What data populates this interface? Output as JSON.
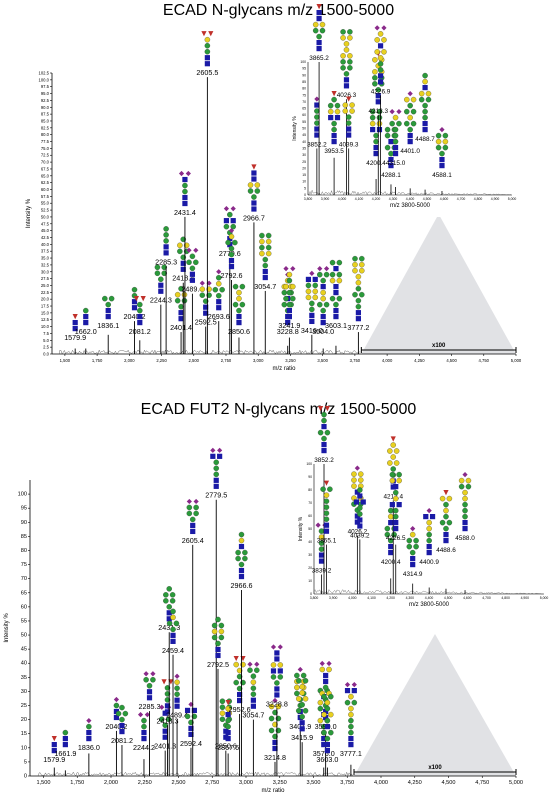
{
  "figure": {
    "top_title": "ECAD N-glycans m/z 1500-5000",
    "bottom_title": "ECAD FUT2 N-glycans m/z 1500-5000",
    "zoom_label": "x100"
  },
  "chart_data": [
    {
      "type": "line",
      "title": "ECAD N-glycans m/z 1500-5000",
      "xlabel": "m/z ratio",
      "ylabel": "Intensity %",
      "xlim": [
        1400,
        5000
      ],
      "ylim": [
        0,
        102.5
      ],
      "x_ticks": [
        1500,
        1750,
        2000,
        2250,
        2500,
        2750,
        3000,
        3250,
        3500,
        3750,
        4000,
        4250,
        4500,
        4750,
        5000
      ],
      "x_tick_labels": [
        "1,500",
        "1,750",
        "2,000",
        "2,250",
        "2,500",
        "2,750",
        "3,000",
        "3,250",
        "3,500",
        "3,750",
        "4,000",
        "4,250",
        "4,500",
        "4,750",
        "5,000"
      ],
      "y_ticks": [
        0,
        2.5,
        5,
        7.5,
        10,
        12.5,
        15,
        17.5,
        20,
        22.5,
        25,
        27.5,
        30,
        32.5,
        35,
        37.5,
        40,
        42.5,
        45,
        47.5,
        50,
        52.5,
        55,
        57.5,
        60,
        62.5,
        65,
        67.5,
        70,
        72.5,
        75,
        77.5,
        80,
        82.5,
        85,
        87.5,
        90,
        92.5,
        95,
        97.5,
        100,
        102.5
      ],
      "y_tick_labels": [
        "0.0",
        "2.5",
        "5.0",
        "7.5",
        "10.0",
        "12.5",
        "15.0",
        "17.5",
        "20.0",
        "22.5",
        "25.0",
        "27.5",
        "30.0",
        "32.5",
        "35.0",
        "37.5",
        "40.0",
        "42.5",
        "45.0",
        "47.5",
        "50.0",
        "52.5",
        "55.0",
        "57.5",
        "60.0",
        "62.5",
        "65.0",
        "67.5",
        "70.0",
        "72.5",
        "75.0",
        "77.5",
        "80.0",
        "82.5",
        "85.0",
        "87.5",
        "90.0",
        "92.5",
        "95.0",
        "97.5",
        "100.0",
        "102.5"
      ],
      "peaks": [
        {
          "x": 1579.9,
          "y": 2,
          "label": "1579.9"
        },
        {
          "x": 1662.0,
          "y": 2,
          "label": "1662.0"
        },
        {
          "x": 1836.1,
          "y": 7,
          "label": "1836.1"
        },
        {
          "x": 2040.2,
          "y": 12,
          "label": "2040.2"
        },
        {
          "x": 2081.2,
          "y": 5,
          "label": "2081.2"
        },
        {
          "x": 2244.3,
          "y": 18,
          "label": "2244.3"
        },
        {
          "x": 2285.3,
          "y": 32,
          "label": "2285.3"
        },
        {
          "x": 2401.4,
          "y": 8,
          "label": "2401.4"
        },
        {
          "x": 2418.4,
          "y": 26,
          "label": "2418.4"
        },
        {
          "x": 2431.4,
          "y": 50,
          "label": "2431.4"
        },
        {
          "x": 2489.4,
          "y": 22,
          "label": "2489.4"
        },
        {
          "x": 2592.5,
          "y": 10,
          "label": "2592.5"
        },
        {
          "x": 2605.5,
          "y": 101,
          "label": "2605.5"
        },
        {
          "x": 2693.6,
          "y": 12,
          "label": "2693.6"
        },
        {
          "x": 2779.6,
          "y": 35,
          "label": "2779.6"
        },
        {
          "x": 2792.6,
          "y": 27,
          "label": "2792.6"
        },
        {
          "x": 2850.6,
          "y": 6,
          "label": "2850.6"
        },
        {
          "x": 2966.7,
          "y": 48,
          "label": "2966.7"
        },
        {
          "x": 3054.7,
          "y": 23,
          "label": "3054.7"
        },
        {
          "x": 3228.8,
          "y": 3,
          "label": "3228.8"
        },
        {
          "x": 3241.9,
          "y": 6,
          "label": "3241.9"
        },
        {
          "x": 3416.0,
          "y": 7,
          "label": "3416.0"
        },
        {
          "x": 3504.0,
          "y": 2,
          "label": "3504.0"
        },
        {
          "x": 3603.1,
          "y": 3,
          "label": "3603.1"
        },
        {
          "x": 3777.2,
          "y": 8,
          "label": "3777.2"
        }
      ],
      "zoom_region": {
        "label": "x100",
        "xlim": [
          3800,
          5000
        ]
      },
      "inset": {
        "xlabel": "m/z 3800-5000",
        "ylabel": "Intensity %",
        "xlim": [
          3800,
          5000
        ],
        "ylim": [
          0,
          100
        ],
        "x_ticks": [
          3800,
          3900,
          4000,
          4100,
          4200,
          4300,
          4400,
          4500,
          4600,
          4700,
          4800,
          4900,
          5000
        ],
        "x_tick_labels": [
          "3,800",
          "3,900",
          "4,000",
          "4,100",
          "4,200",
          "4,300",
          "4,400",
          "4,500",
          "4,600",
          "4,700",
          "4,800",
          "4,900",
          "5,000"
        ],
        "y_ticks": [
          0,
          5,
          10,
          15,
          20,
          25,
          30,
          35,
          40,
          45,
          50,
          55,
          60,
          65,
          70,
          75,
          80,
          85,
          90,
          95,
          100
        ],
        "y_tick_labels": [
          "0",
          "5",
          "10",
          "15",
          "20",
          "25",
          "30",
          "35",
          "40",
          "45",
          "50",
          "55",
          "60",
          "65",
          "70",
          "75",
          "80",
          "85",
          "90",
          "95",
          "100"
        ],
        "peaks": [
          {
            "x": 3852.2,
            "y": 35,
            "label": "3852.2"
          },
          {
            "x": 3865.2,
            "y": 100,
            "label": "3865.2"
          },
          {
            "x": 3953.5,
            "y": 28,
            "label": "3953.5"
          },
          {
            "x": 4026.3,
            "y": 72,
            "label": "4026.3"
          },
          {
            "x": 4039.3,
            "y": 35,
            "label": "4039.3"
          },
          {
            "x": 4200.4,
            "y": 12,
            "label": "4200.4"
          },
          {
            "x": 4213.3,
            "y": 60,
            "label": "4213.3"
          },
          {
            "x": 4226.9,
            "y": 75,
            "label": "4226.9"
          },
          {
            "x": 4288.1,
            "y": 8,
            "label": "4288.1"
          },
          {
            "x": 4315.0,
            "y": 6,
            "label": "4315.0"
          },
          {
            "x": 4401.0,
            "y": 5,
            "label": "4401.0"
          },
          {
            "x": 4488.7,
            "y": 4,
            "label": "4488.7"
          },
          {
            "x": 4588.1,
            "y": 3,
            "label": "4588.1"
          }
        ]
      }
    },
    {
      "type": "line",
      "title": "ECAD FUT2 N-glycans m/z 1500-5000",
      "xlabel": "m/z ratio",
      "ylabel": "Intensity %",
      "xlim": [
        1400,
        5000
      ],
      "ylim": [
        0,
        105
      ],
      "x_ticks": [
        1500,
        1750,
        2000,
        2250,
        2500,
        2750,
        3000,
        3250,
        3500,
        3750,
        4000,
        4250,
        4500,
        4750,
        5000
      ],
      "x_tick_labels": [
        "1,500",
        "1,750",
        "2,000",
        "2,250",
        "2,500",
        "2,750",
        "3,000",
        "3,250",
        "3,500",
        "3,750",
        "4,000",
        "4,250",
        "4,500",
        "4,750",
        "5,000"
      ],
      "y_ticks": [
        0,
        5,
        10,
        15,
        20,
        25,
        30,
        35,
        40,
        45,
        50,
        55,
        60,
        65,
        70,
        75,
        80,
        85,
        90,
        95,
        100
      ],
      "y_tick_labels": [
        "0",
        "5",
        "10",
        "15",
        "20",
        "25",
        "30",
        "35",
        "40",
        "45",
        "50",
        "55",
        "60",
        "65",
        "70",
        "75",
        "80",
        "85",
        "90",
        "95",
        "100"
      ],
      "peaks": [
        {
          "x": 1579.9,
          "y": 3,
          "label": "1579.9"
        },
        {
          "x": 1661.9,
          "y": 2,
          "label": "1661.9"
        },
        {
          "x": 1836.0,
          "y": 8,
          "label": "1836.0"
        },
        {
          "x": 2040.2,
          "y": 16,
          "label": "2040.2"
        },
        {
          "x": 2081.2,
          "y": 11,
          "label": "2081.2"
        },
        {
          "x": 2244.2,
          "y": 6,
          "label": "2244.2"
        },
        {
          "x": 2285.3,
          "y": 23,
          "label": "2285.3"
        },
        {
          "x": 2401.3,
          "y": 9,
          "label": "2401.3"
        },
        {
          "x": 2418.3,
          "y": 18,
          "label": "2418.3"
        },
        {
          "x": 2431.3,
          "y": 51,
          "label": "2431.3"
        },
        {
          "x": 2459.4,
          "y": 43,
          "label": "2459.4"
        },
        {
          "x": 2489.4,
          "y": 20,
          "label": "2489.4"
        },
        {
          "x": 2592.4,
          "y": 10,
          "label": "2592.4"
        },
        {
          "x": 2605.4,
          "y": 82,
          "label": "2605.4"
        },
        {
          "x": 2779.5,
          "y": 98,
          "label": "2779.5"
        },
        {
          "x": 2792.5,
          "y": 38,
          "label": "2792.5"
        },
        {
          "x": 2850.6,
          "y": 9,
          "label": "2850.6"
        },
        {
          "x": 2867.6,
          "y": 8,
          "label": "2867.6"
        },
        {
          "x": 2952.6,
          "y": 22,
          "label": "2952.6"
        },
        {
          "x": 2966.6,
          "y": 66,
          "label": "2966.6"
        },
        {
          "x": 3054.7,
          "y": 20,
          "label": "3054.7"
        },
        {
          "x": 3214.8,
          "y": 5,
          "label": "3214.8"
        },
        {
          "x": 3228.8,
          "y": 24,
          "label": "3228.8"
        },
        {
          "x": 3401.9,
          "y": 16,
          "label": "3401.9"
        },
        {
          "x": 3415.9,
          "y": 12,
          "label": "3415.9"
        },
        {
          "x": 3576.0,
          "y": 3,
          "label": "3576.0"
        },
        {
          "x": 3590.0,
          "y": 16,
          "label": "3590.0"
        },
        {
          "x": 3603.0,
          "y": 3,
          "label": "3603.0"
        },
        {
          "x": 3777.1,
          "y": 4,
          "label": "3777.1"
        }
      ],
      "zoom_region": {
        "label": "x100",
        "xlim": [
          3800,
          5000
        ]
      },
      "inset": {
        "xlabel": "m/z 3800-5000",
        "ylabel": "Intensity %",
        "xlim": [
          3800,
          5000
        ],
        "ylim": [
          0,
          100
        ],
        "x_ticks": [
          3800,
          3900,
          4000,
          4100,
          4200,
          4300,
          4400,
          4500,
          4600,
          4700,
          4800,
          4900,
          5000
        ],
        "x_tick_labels": [
          "3,800",
          "3,900",
          "4,000",
          "4,100",
          "4,200",
          "4,300",
          "4,400",
          "4,500",
          "4,600",
          "4,700",
          "4,800",
          "4,900",
          "5,000"
        ],
        "y_ticks": [
          0,
          10,
          20,
          30,
          40,
          50,
          60,
          70,
          80,
          90,
          100
        ],
        "y_tick_labels": [
          "0",
          "10",
          "20",
          "30",
          "40",
          "50",
          "60",
          "70",
          "80",
          "90",
          "100"
        ],
        "peaks": [
          {
            "x": 3839.2,
            "y": 15,
            "label": "3839.2"
          },
          {
            "x": 3852.2,
            "y": 100,
            "label": "3852.2"
          },
          {
            "x": 3865.1,
            "y": 38,
            "label": "3865.1"
          },
          {
            "x": 4026.2,
            "y": 45,
            "label": "4026.2"
          },
          {
            "x": 4039.2,
            "y": 42,
            "label": "4039.2"
          },
          {
            "x": 4200.4,
            "y": 12,
            "label": "4200.4"
          },
          {
            "x": 4213.4,
            "y": 72,
            "label": "4213.4"
          },
          {
            "x": 4226.5,
            "y": 38,
            "label": "4226.5"
          },
          {
            "x": 4314.9,
            "y": 8,
            "label": "4314.9"
          },
          {
            "x": 4400.9,
            "y": 5,
            "label": "4400.9"
          },
          {
            "x": 4488.6,
            "y": 4,
            "label": "4488.6"
          },
          {
            "x": 4588.0,
            "y": 3,
            "label": "4588.0"
          }
        ]
      }
    }
  ]
}
